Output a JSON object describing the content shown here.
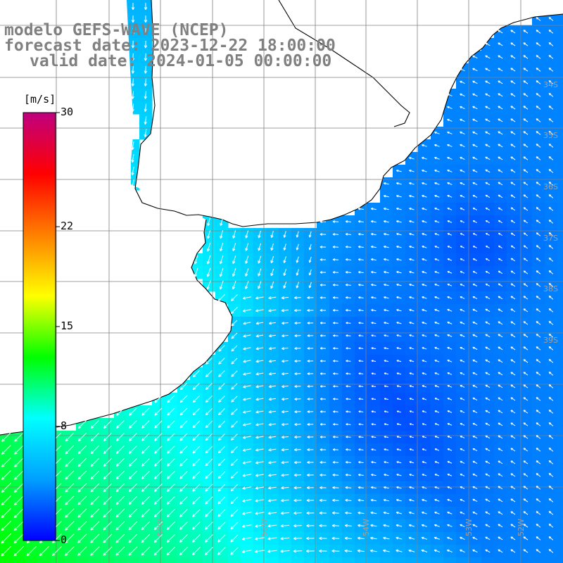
{
  "title": {
    "line1": "modelo GEFS-WAVE (NCEP)",
    "line2": "forecast date: 2023-12-22 18:00:00",
    "line3": "valid date: 2024-01-05 00:00:00"
  },
  "colorbar": {
    "unit": "[m/s]",
    "ticks": [
      {
        "value": 30,
        "label": "30"
      },
      {
        "value": 22,
        "label": "22"
      },
      {
        "value": 15,
        "label": "15"
      },
      {
        "value": 8,
        "label": "8"
      },
      {
        "value": 0,
        "label": "0"
      }
    ],
    "range": [
      0,
      30
    ],
    "colors": [
      "#0000ff",
      "#00a0ff",
      "#00ffff",
      "#00ff00",
      "#ffff00",
      "#ff8000",
      "#ff0000",
      "#c00080"
    ]
  },
  "map": {
    "lon_range": [
      -58.3,
      -51.7
    ],
    "lat_range": [
      -39.7,
      -33.7
    ],
    "lon_labels": [
      "56W",
      "55W",
      "54W",
      "53W",
      "52W"
    ],
    "lat_labels": [
      "34S",
      "35S",
      "36S",
      "37S",
      "38S",
      "39S"
    ],
    "land_color": "#ffffff",
    "grid_color": "#808080"
  }
}
